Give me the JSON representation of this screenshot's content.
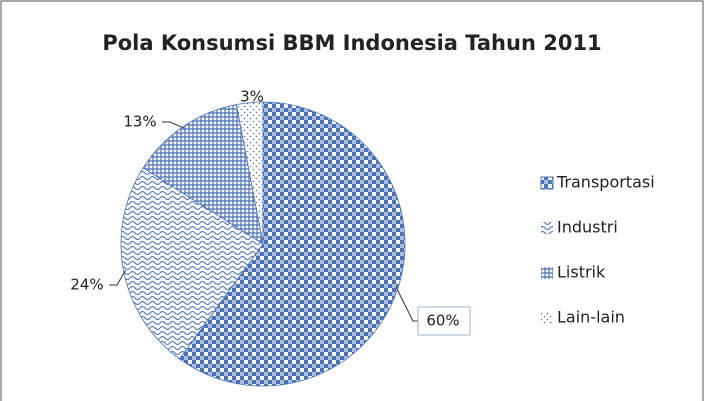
{
  "chart_data": {
    "type": "pie",
    "title": "Pola Konsumsi BBM  Indonesia Tahun 2011",
    "categories": [
      "Transportasi",
      "Industri",
      "Listrik",
      "Lain-lain"
    ],
    "values": [
      60,
      24,
      13,
      3
    ],
    "value_labels": [
      "60%",
      "24%",
      "13%",
      "3%"
    ],
    "colors": [
      "#4a72b8",
      "#4a72b8",
      "#4a72b8",
      "#4a72b8"
    ],
    "legend": "right"
  }
}
